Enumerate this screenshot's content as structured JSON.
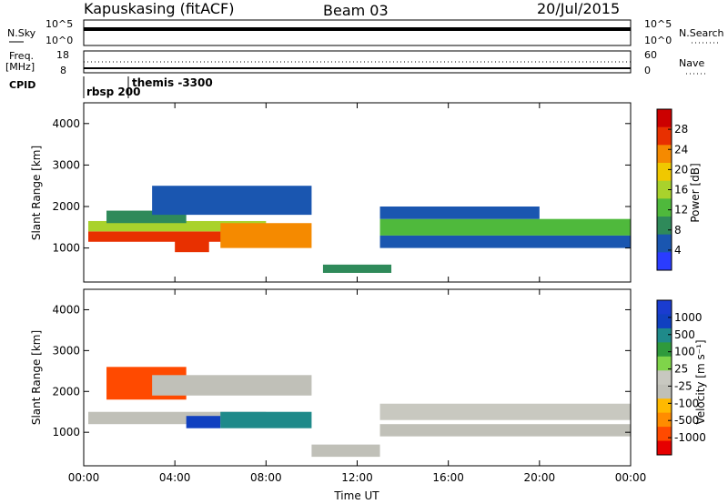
{
  "header": {
    "station": "Kapuskasing (fitACF)",
    "beam": "Beam 03",
    "date": "20/Jul/2015"
  },
  "sky_panel": {
    "left_label": "N.Sky",
    "left_ticks": [
      "10^5",
      "10^0"
    ],
    "right_label": "N.Search",
    "right_ticks": [
      "10^5",
      "10^0"
    ]
  },
  "freq_panel": {
    "left_label_1": "Freq.",
    "left_label_2": "[MHz]",
    "left_ticks": [
      "18",
      "8"
    ],
    "right_label": "Nave",
    "right_ticks": [
      "60",
      "0"
    ]
  },
  "cpid": {
    "label": "CPID",
    "modes": [
      "rbsp 200",
      "themis -3300"
    ]
  },
  "colors": {
    "power": [
      "#2a3cff",
      "#1a56b0",
      "#2f8a5a",
      "#4fb93c",
      "#a9d22c",
      "#f0c800",
      "#f58a00",
      "#e83000",
      "#cc0000"
    ],
    "velocity": [
      "#e60000",
      "#ff4a00",
      "#ff8c00",
      "#ffb900",
      "#c0c0b8",
      "#c8c8c0",
      "#7fd44a",
      "#2f9a3c",
      "#1f8a8a",
      "#1040c0",
      "#1a3cd0"
    ]
  },
  "chart_data": [
    {
      "type": "heatmap",
      "name_on_chart": "power",
      "ylabel": "Slant Range [km]",
      "xlabel": "",
      "ylim": [
        180,
        4500
      ],
      "xlim_hours": [
        0,
        24
      ],
      "yticks": [
        "4000",
        "3000",
        "2000",
        "1000"
      ],
      "colorbar": {
        "label": "Power [dB]",
        "ticks": [
          "28",
          "24",
          "20",
          "16",
          "12",
          "8",
          "4"
        ]
      },
      "regions": [
        {
          "x": [
            0.2,
            8.5
          ],
          "y": [
            1150,
            1400
          ],
          "level": 7
        },
        {
          "x": [
            0.2,
            8.0
          ],
          "y": [
            1400,
            1650
          ],
          "level": 4
        },
        {
          "x": [
            1.0,
            4.5
          ],
          "y": [
            1600,
            1900
          ],
          "level": 2
        },
        {
          "x": [
            3.0,
            10.0
          ],
          "y": [
            1800,
            2500
          ],
          "level": 1
        },
        {
          "x": [
            4.0,
            5.5
          ],
          "y": [
            900,
            1300
          ],
          "level": 7
        },
        {
          "x": [
            6.0,
            10.0
          ],
          "y": [
            1000,
            1600
          ],
          "level": 6
        },
        {
          "x": [
            10.5,
            13.5
          ],
          "y": [
            400,
            600
          ],
          "level": 2
        },
        {
          "x": [
            13.0,
            24.0
          ],
          "y": [
            1300,
            1700
          ],
          "level": 3
        },
        {
          "x": [
            13.0,
            24.0
          ],
          "y": [
            1000,
            1300
          ],
          "level": 1
        },
        {
          "x": [
            13.0,
            20.0
          ],
          "y": [
            1700,
            2000
          ],
          "level": 1
        }
      ]
    },
    {
      "type": "heatmap",
      "name_on_chart": "velocity",
      "ylabel": "Slant Range [km]",
      "xlabel": "Time UT",
      "ylim": [
        180,
        4500
      ],
      "xlim_hours": [
        0,
        24
      ],
      "xticks": [
        "00:00",
        "04:00",
        "08:00",
        "12:00",
        "16:00",
        "20:00",
        "00:00"
      ],
      "yticks": [
        "4000",
        "3000",
        "2000",
        "1000"
      ],
      "colorbar": {
        "label": "Velocity [m s⁻¹]",
        "ticks": [
          "1000",
          "500",
          "100",
          "25",
          "-25",
          "-100",
          "-500",
          "-1000"
        ]
      },
      "regions": [
        {
          "x": [
            0.2,
            8.0
          ],
          "y": [
            1200,
            1500
          ],
          "level": 4
        },
        {
          "x": [
            1.0,
            4.5
          ],
          "y": [
            1800,
            2600
          ],
          "level": 1
        },
        {
          "x": [
            3.0,
            10.0
          ],
          "y": [
            1900,
            2400
          ],
          "level": 4
        },
        {
          "x": [
            4.5,
            6.0
          ],
          "y": [
            1100,
            1400
          ],
          "level": 9
        },
        {
          "x": [
            6.0,
            10.0
          ],
          "y": [
            1100,
            1500
          ],
          "level": 8
        },
        {
          "x": [
            10.0,
            13.0
          ],
          "y": [
            400,
            700
          ],
          "level": 4
        },
        {
          "x": [
            13.0,
            24.0
          ],
          "y": [
            1300,
            1700
          ],
          "level": 5
        },
        {
          "x": [
            13.0,
            24.0
          ],
          "y": [
            900,
            1200
          ],
          "level": 4
        }
      ]
    }
  ]
}
